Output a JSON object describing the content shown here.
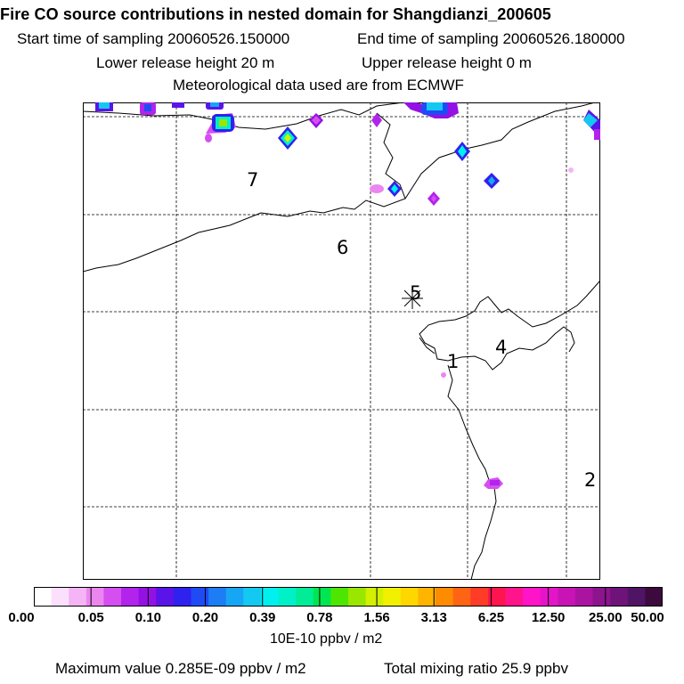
{
  "header": {
    "title": "Fire CO source contributions in nested domain for Shangdianzi_200605",
    "start_time": "Start time of sampling 20060526.150000",
    "end_time": "End time of sampling 20060526.180000",
    "lower_release": "Lower release height   20 m",
    "upper_release": "Upper release height    0 m",
    "met_data": "Meteorological data used are from ECMWF"
  },
  "map": {
    "region_labels": [
      "1",
      "2",
      "4",
      "5",
      "6",
      "7"
    ]
  },
  "legend": {
    "ticks": [
      "0.00",
      "0.05",
      "0.10",
      "0.20",
      "0.39",
      "0.78",
      "1.56",
      "3.13",
      "6.25",
      "12.50",
      "25.00",
      "50.00"
    ],
    "colors": [
      "#ffffff",
      "#fbe0fb",
      "#f5b4f5",
      "#ec86ef",
      "#d54ff0",
      "#b223ec",
      "#9411e3",
      "#5a14e8",
      "#2f21ee",
      "#1f4bf5",
      "#1c7df5",
      "#17a6f3",
      "#13c9f2",
      "#00f0f0",
      "#00f0c8",
      "#00ec96",
      "#00e650",
      "#4ee600",
      "#9ae600",
      "#d2f000",
      "#f0f000",
      "#ffd700",
      "#ffb400",
      "#ff8c00",
      "#ff6414",
      "#ff3c28",
      "#ff1450",
      "#ff148c",
      "#ff14c8",
      "#e614c8",
      "#c814b4",
      "#aa14a0",
      "#8c148c",
      "#6e1478",
      "#501464",
      "#3c0a3c"
    ],
    "unit": "10E-10 ppbv / m2"
  },
  "footer": {
    "max_value": "Maximum value  0.285E-09 ppbv / m2",
    "total_mixing": "Total mixing ratio       25.9 ppbv"
  }
}
